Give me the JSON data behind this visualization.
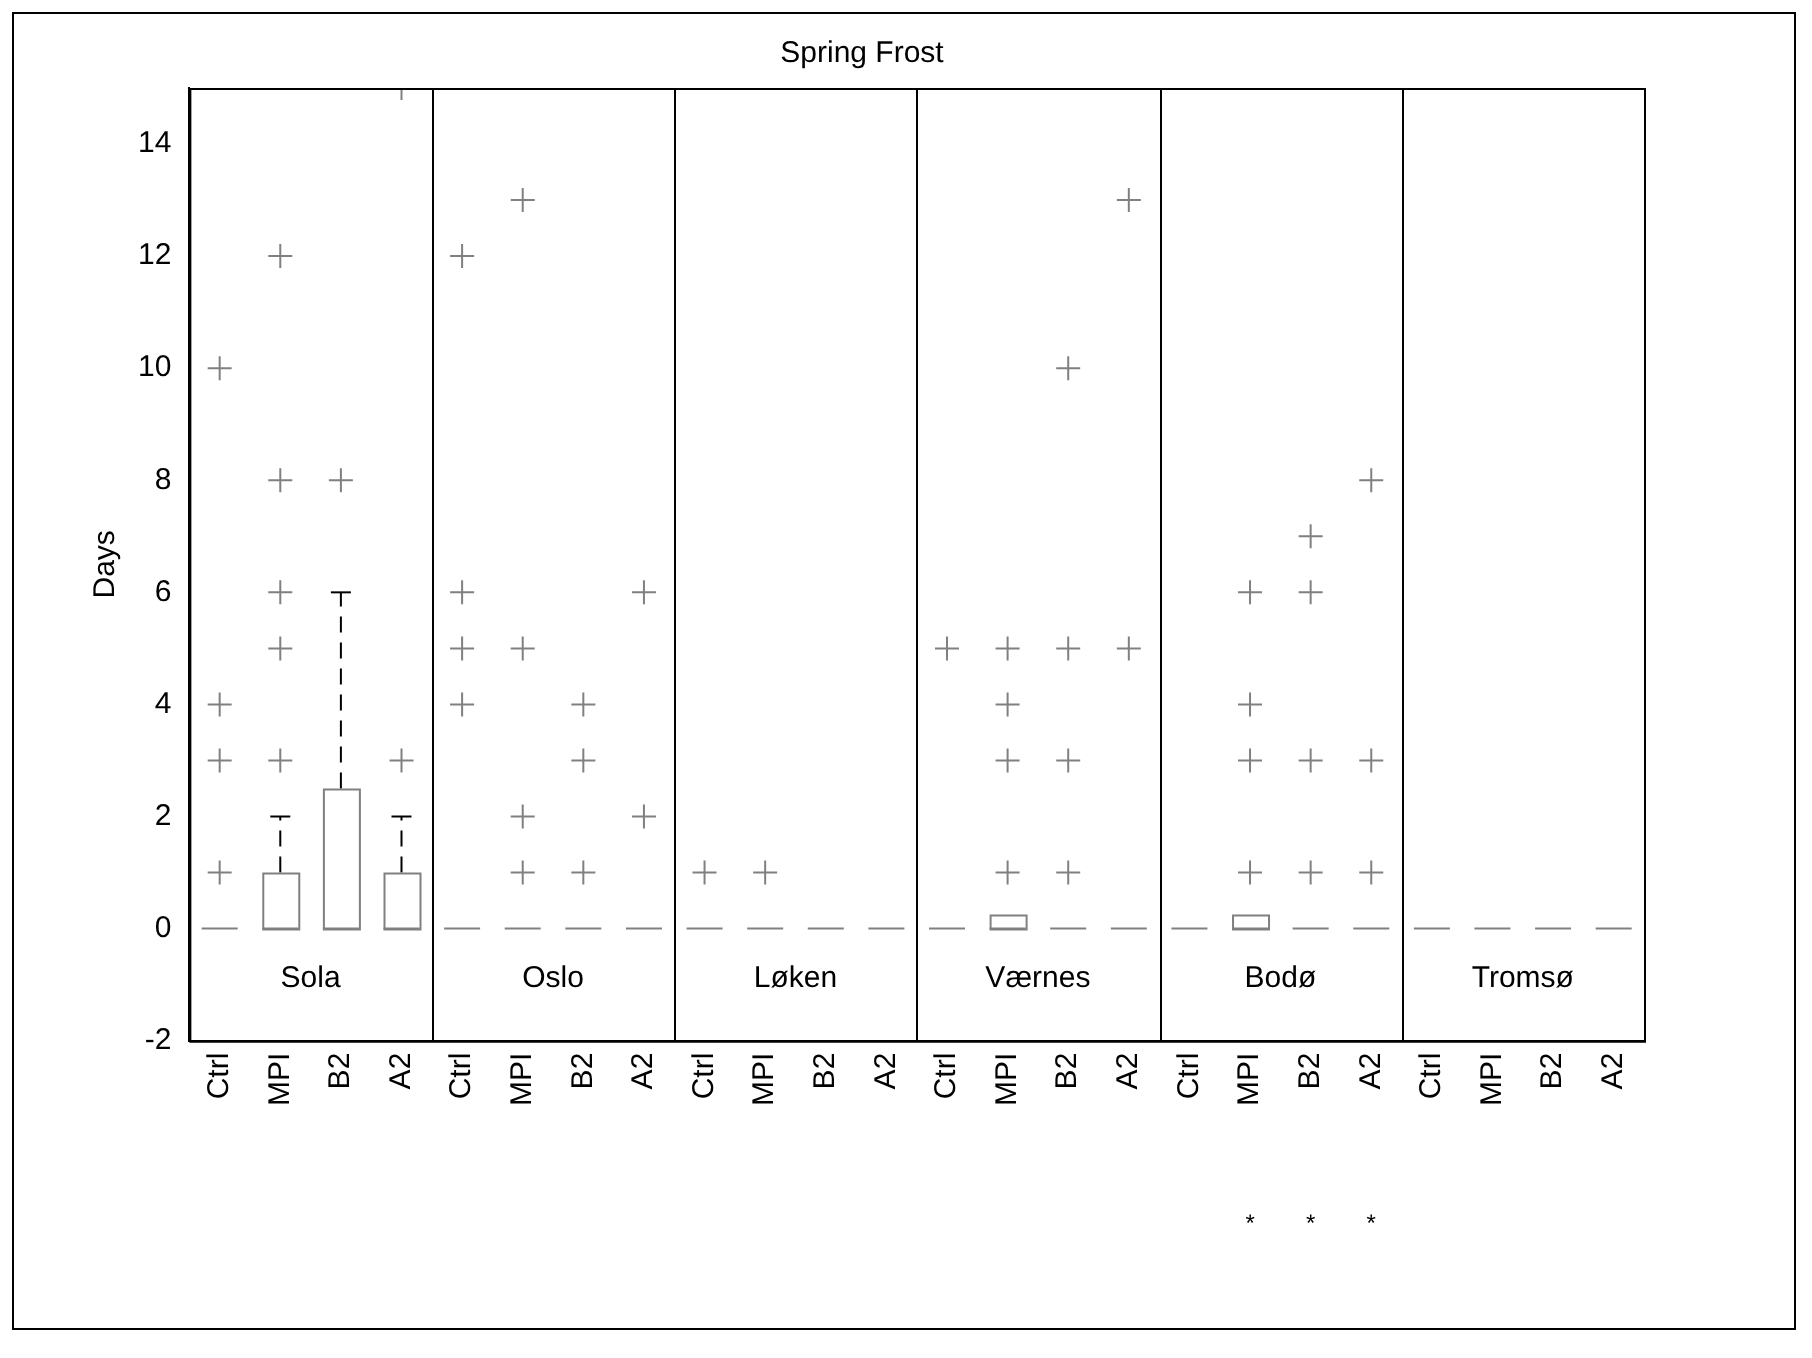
{
  "chart_data": {
    "type": "box",
    "title": "Spring Frost",
    "ylabel": "Days",
    "categories": [
      "Ctrl",
      "MPI",
      "B2",
      "A2",
      "Ctrl",
      "MPI",
      "B2",
      "A2",
      "Ctrl",
      "MPI",
      "B2",
      "A2",
      "Ctrl",
      "MPI",
      "B2",
      "A2",
      "Ctrl",
      "MPI",
      "B2",
      "A2",
      "Ctrl",
      "MPI",
      "B2",
      "A2"
    ],
    "series": [
      {
        "color": "#808080",
        "boxes": [
          {
            "low": 0,
            "q1": 0,
            "median": 0,
            "q3": 0,
            "high": 0,
            "outliers": [
              1,
              3,
              4,
              10
            ]
          },
          {
            "low": 0,
            "q1": 0,
            "median": 0,
            "q3": 1,
            "high": 2,
            "outliers": [
              3,
              5,
              6,
              8,
              12
            ]
          },
          {
            "low": 0,
            "q1": 0,
            "median": 0,
            "q3": 2.5,
            "high": 6,
            "outliers": [
              8
            ]
          },
          {
            "low": 0,
            "q1": 0,
            "median": 0,
            "q3": 1,
            "high": 2,
            "outliers": [
              3,
              15
            ]
          },
          {
            "low": 0,
            "q1": 0,
            "median": 0,
            "q3": 0,
            "high": 0,
            "outliers": [
              4,
              5,
              6,
              12
            ]
          },
          {
            "low": 0,
            "q1": 0,
            "median": 0,
            "q3": 0,
            "high": 0,
            "outliers": [
              1,
              2,
              5,
              13
            ]
          },
          {
            "low": 0,
            "q1": 0,
            "median": 0,
            "q3": 0,
            "high": 0,
            "outliers": [
              1,
              3,
              4
            ]
          },
          {
            "low": 0,
            "q1": 0,
            "median": 0,
            "q3": 0,
            "high": 0,
            "outliers": [
              2,
              6
            ]
          },
          {
            "low": 0,
            "q1": 0,
            "median": 0,
            "q3": 0,
            "high": 0,
            "outliers": [
              1
            ]
          },
          {
            "low": 0,
            "q1": 0,
            "median": 0,
            "q3": 0,
            "high": 0,
            "outliers": [
              1
            ]
          },
          {
            "low": 0,
            "q1": 0,
            "median": 0,
            "q3": 0,
            "high": 0
          },
          {
            "low": 0,
            "q1": 0,
            "median": 0,
            "q3": 0,
            "high": 0
          },
          {
            "low": 0,
            "q1": 0,
            "median": 0,
            "q3": 0,
            "high": 0,
            "outliers": [
              5
            ]
          },
          {
            "low": 0,
            "q1": 0,
            "median": 0,
            "q3": 0.25,
            "high": 0.25,
            "outliers": [
              1,
              3,
              4,
              5
            ]
          },
          {
            "low": 0,
            "q1": 0,
            "median": 0,
            "q3": 0,
            "high": 0,
            "outliers": [
              1,
              3,
              5,
              10
            ]
          },
          {
            "low": 0,
            "q1": 0,
            "median": 0,
            "q3": 0,
            "high": 0,
            "outliers": [
              5,
              13
            ]
          },
          {
            "low": 0,
            "q1": 0,
            "median": 0,
            "q3": 0,
            "high": 0
          },
          {
            "low": 0,
            "q1": 0,
            "median": 0,
            "q3": 0.25,
            "high": 0.25,
            "outliers": [
              1,
              3,
              4,
              6
            ]
          },
          {
            "low": 0,
            "q1": 0,
            "median": 0,
            "q3": 0,
            "high": 0,
            "outliers": [
              1,
              3,
              6,
              7
            ]
          },
          {
            "low": 0,
            "q1": 0,
            "median": 0,
            "q3": 0,
            "high": 0,
            "outliers": [
              1,
              3,
              8
            ]
          },
          {
            "low": 0,
            "q1": 0,
            "median": 0,
            "q3": 0,
            "high": 0
          },
          {
            "low": 0,
            "q1": 0,
            "median": 0,
            "q3": 0,
            "high": 0
          },
          {
            "low": 0,
            "q1": 0,
            "median": 0,
            "q3": 0,
            "high": 0
          },
          {
            "low": 0,
            "q1": 0,
            "median": 0,
            "q3": 0,
            "high": 0
          }
        ]
      }
    ],
    "annotations": [
      "Sola",
      "Oslo",
      "Løken",
      "Værnes",
      "Bodø",
      "Tromsø",
      "*",
      "*",
      "*"
    ],
    "ylim": [
      -2,
      15
    ],
    "yticks": [
      -2,
      0,
      2,
      4,
      6,
      8,
      10,
      12,
      14
    ],
    "grid": false,
    "legend": false,
    "marker": "cross"
  }
}
